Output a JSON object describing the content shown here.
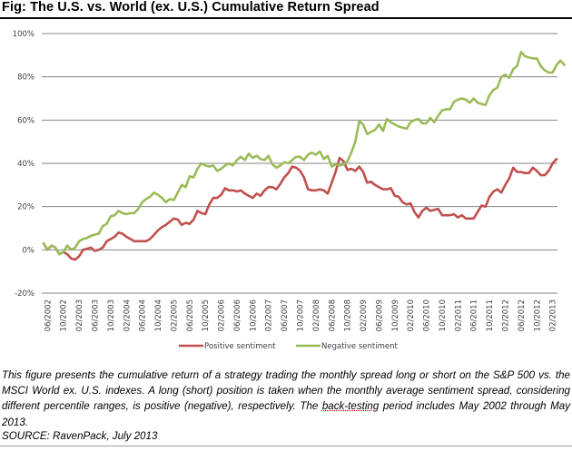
{
  "figure": {
    "title": "Fig:  The U.S. vs. World (ex. U.S.) Cumulative Return Spread",
    "caption_part1": "This figure presents the cumulative return of a strategy trading the monthly spread long or short on the S&P 500 vs. the MSCI World ex. U.S. indexes. A long (short) position is taken when the monthly average sentiment spread, considering different percentile ranges, is positive (negative), respectively. The ",
    "caption_underlined": "back-testing",
    "caption_part2": " period includes May 2002 through May 2013.",
    "source": "SOURCE: RavenPack, July 2013"
  },
  "chart_data": {
    "type": "line",
    "title": "",
    "xlabel": "",
    "ylabel": "",
    "ylim": [
      -20,
      100
    ],
    "yticks": [
      -20,
      0,
      20,
      40,
      60,
      80,
      100
    ],
    "ytick_labels": [
      "-20%",
      "0%",
      "20%",
      "40%",
      "60%",
      "80%",
      "100%"
    ],
    "grid": true,
    "legend_position": "bottom",
    "x_start": "05/2002",
    "x_end": "05/2013",
    "x_tick_labels": [
      "06/2002",
      "10/2002",
      "02/2003",
      "06/2003",
      "10/2003",
      "02/2004",
      "06/2004",
      "10/2004",
      "02/2005",
      "06/2005",
      "10/2005",
      "02/2006",
      "06/2006",
      "10/2006",
      "02/2007",
      "06/2007",
      "10/2007",
      "02/2008",
      "06/2008",
      "10/2008",
      "02/2009",
      "06/2009",
      "10/2009",
      "02/2010",
      "06/2010",
      "10/2010",
      "02/2011",
      "06/2011",
      "10/2011",
      "02/2012",
      "06/2012",
      "10/2012",
      "02/2013"
    ],
    "series": [
      {
        "name": "Positive sentiment",
        "color": "#C0504D",
        "values": [
          3,
          0,
          2,
          1,
          -2,
          -1,
          -2,
          -4,
          -4.5,
          -3,
          0,
          0.5,
          1,
          -0.5,
          0,
          1,
          4,
          5,
          6,
          8,
          7.5,
          6,
          5,
          4,
          4,
          4,
          4,
          5,
          7,
          9,
          10.5,
          11.5,
          13,
          14.5,
          14,
          11.5,
          12.5,
          12,
          14,
          18,
          17,
          16.5,
          21,
          24,
          24,
          25.5,
          28.5,
          27.5,
          27.5,
          27,
          27.5,
          26,
          25,
          24,
          26,
          25,
          27.5,
          29,
          29,
          28,
          30.5,
          33.5,
          35.5,
          38.5,
          38,
          36.5,
          33.5,
          28,
          27.5,
          27.5,
          28,
          27.5,
          26,
          31,
          36,
          42.5,
          41,
          37,
          37.5,
          36.5,
          38.5,
          36,
          31,
          31.5,
          30,
          29,
          28,
          28,
          28.5,
          25,
          24.5,
          22,
          21,
          21.5,
          17.5,
          15,
          18,
          19.5,
          18,
          18.5,
          19,
          16,
          16,
          16,
          16.5,
          15,
          16,
          14.5,
          14.5,
          14.5,
          17.5,
          20.5,
          20,
          24.5,
          27,
          28,
          26.5,
          30,
          33,
          38,
          36,
          36,
          35.5,
          35.5,
          38,
          36.5,
          34.5,
          34.5,
          36.5,
          40,
          42
        ]
      },
      {
        "name": "Negative sentiment",
        "color": "#9BBB59",
        "values": [
          3,
          0,
          2,
          1,
          -2,
          -1,
          2,
          0,
          1,
          4,
          5,
          5.5,
          6.5,
          7,
          7.5,
          11,
          12,
          15.5,
          16,
          18,
          17,
          16.5,
          17,
          17,
          19,
          22,
          23.5,
          24.5,
          26.5,
          25.5,
          24,
          22,
          23.5,
          23,
          26.5,
          30,
          29,
          34,
          33.5,
          37.5,
          40,
          39,
          38.5,
          39,
          36.5,
          37.5,
          39,
          40,
          39,
          41.5,
          43,
          41.5,
          44.5,
          42.5,
          43.5,
          42,
          41.5,
          43.5,
          39.5,
          38,
          39,
          40.5,
          40,
          41.5,
          43,
          43,
          41.5,
          44,
          45,
          44,
          45.5,
          42,
          43.5,
          38.5,
          39.5,
          39,
          39.5,
          41,
          45,
          50,
          59.5,
          58,
          53.5,
          54.5,
          55.5,
          58,
          55,
          60.5,
          59,
          58,
          57,
          56.5,
          56,
          59,
          60,
          60.5,
          58.5,
          58.5,
          61,
          59,
          62,
          64.5,
          65,
          65,
          68.5,
          69.5,
          70,
          69.5,
          68,
          70,
          68,
          67.5,
          67,
          71.5,
          74,
          75,
          80,
          81,
          79.5,
          83.5,
          85,
          91.5,
          89.5,
          89,
          88.5,
          88.5,
          85,
          83,
          82,
          82,
          85.5,
          87.5,
          85.5
        ]
      }
    ]
  }
}
